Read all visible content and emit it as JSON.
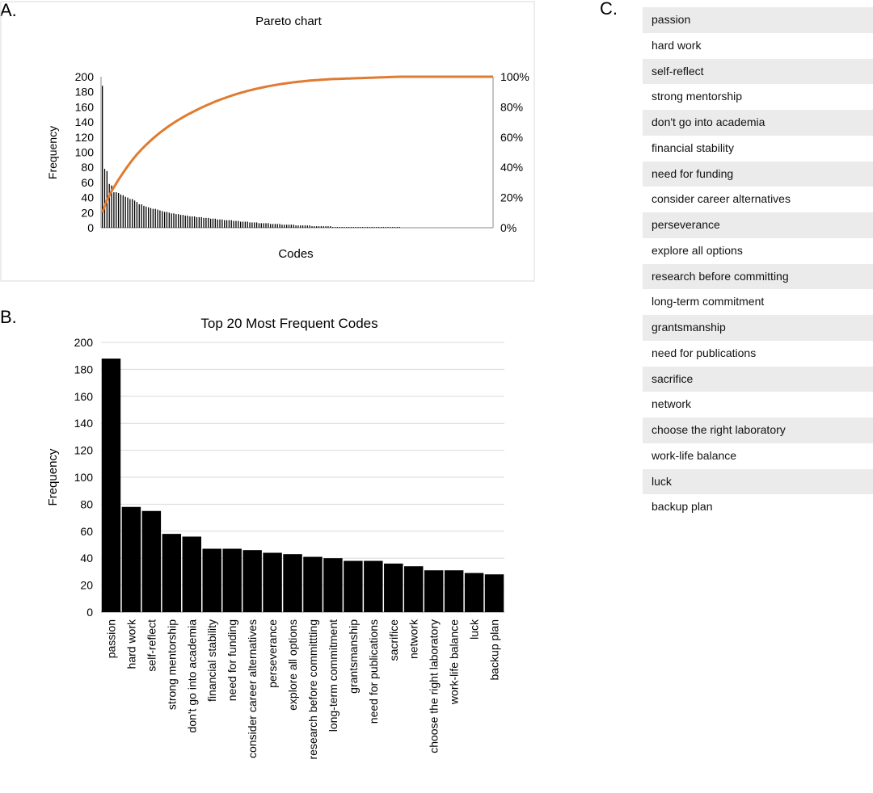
{
  "panels": {
    "a_label": "A.",
    "b_label": "B.",
    "c_label": "C."
  },
  "chart_data": [
    {
      "type": "bar",
      "panel": "A",
      "title": "Pareto chart",
      "xlabel": "Codes",
      "ylabel": "Frequency",
      "ylim": [
        0,
        200
      ],
      "y_ticks": [
        "0",
        "20",
        "40",
        "60",
        "80",
        "100",
        "120",
        "140",
        "160",
        "180",
        "200"
      ],
      "y2lim": [
        0,
        100
      ],
      "y2_ticks": [
        "0%",
        "20%",
        "40%",
        "60%",
        "80%",
        "100%"
      ],
      "grid": false,
      "series": [
        {
          "kind": "bar",
          "color": "#000000",
          "values": [
            188,
            78,
            75,
            58,
            56,
            47,
            47,
            46,
            44,
            43,
            41,
            40,
            38,
            38,
            36,
            34,
            31,
            31,
            29,
            28,
            27,
            26,
            25,
            25,
            24,
            23,
            22,
            21,
            21,
            20,
            19,
            19,
            18,
            18,
            17,
            17,
            16,
            16,
            15,
            15,
            15,
            14,
            14,
            14,
            13,
            13,
            13,
            12,
            12,
            12,
            11,
            11,
            11,
            10,
            10,
            10,
            10,
            9,
            9,
            9,
            8,
            8,
            8,
            8,
            7,
            7,
            7,
            7,
            6,
            6,
            6,
            6,
            6,
            5,
            5,
            5,
            5,
            5,
            4,
            4,
            4,
            4,
            4,
            4,
            3,
            3,
            3,
            3,
            3,
            3,
            3,
            2,
            2,
            2,
            2,
            2,
            2,
            2,
            2,
            2,
            1,
            1,
            1,
            1,
            1,
            1,
            1,
            1,
            1,
            1,
            1,
            1,
            1,
            1,
            1,
            1,
            1,
            1,
            1,
            1,
            1,
            1,
            1,
            1,
            1,
            1,
            1,
            1,
            1,
            1
          ]
        },
        {
          "kind": "line",
          "color": "#e07b32",
          "cumulative_percent_of": "bar",
          "note_axis": "secondary"
        }
      ]
    },
    {
      "type": "bar",
      "panel": "B",
      "title": "Top 20 Most Frequent Codes",
      "xlabel": "",
      "ylabel": "Frequency",
      "ylim": [
        0,
        200
      ],
      "y_ticks": [
        "0",
        "20",
        "40",
        "60",
        "80",
        "100",
        "120",
        "140",
        "160",
        "180",
        "200"
      ],
      "grid": true,
      "bar_color": "#000000",
      "categories": [
        "passion",
        "hard work",
        "self-reflect",
        "strong mentorship",
        "don't go into academia",
        "financial stability",
        "need for funding",
        "consider career alternatives",
        "perseverance",
        "explore all options",
        "research before committting",
        "long-term commitment",
        "grantsmanship",
        "need for publications",
        "sacrifice",
        "network",
        "choose the right laboratory",
        "work-life balance",
        "luck",
        "backup plan"
      ],
      "values": [
        188,
        78,
        75,
        58,
        56,
        47,
        47,
        46,
        44,
        43,
        41,
        40,
        38,
        38,
        36,
        34,
        31,
        31,
        29,
        28
      ]
    }
  ],
  "code_list": {
    "items": [
      "passion",
      "hard work",
      "self-reflect",
      "strong mentorship",
      "don't go into academia",
      "financial stability",
      "need for funding",
      "consider career alternatives",
      "perseverance",
      "explore all options",
      "research before committing",
      "long-term commitment",
      "grantsmanship",
      "need for publications",
      "sacrifice",
      "network",
      "choose the right laboratory",
      "work-life balance",
      "luck",
      "backup plan"
    ]
  }
}
